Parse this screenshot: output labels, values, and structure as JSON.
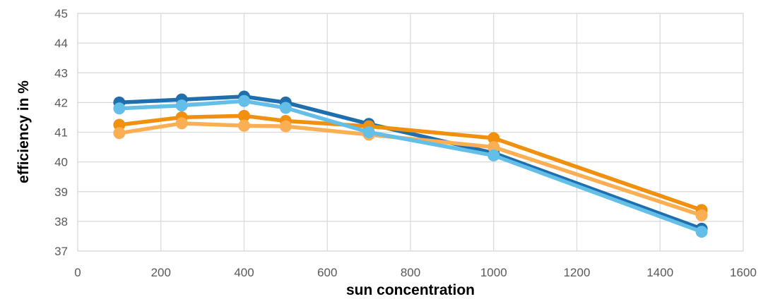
{
  "chart_data": {
    "type": "line",
    "title": "",
    "xlabel": "sun concentration",
    "ylabel": "efficiency in %",
    "xlim": [
      0,
      1600
    ],
    "ylim": [
      37,
      45
    ],
    "xticks": [
      0,
      200,
      400,
      600,
      800,
      1000,
      1200,
      1400,
      1600
    ],
    "yticks": [
      37,
      38,
      39,
      40,
      41,
      42,
      43,
      44,
      45
    ],
    "grid": true,
    "legend": "none",
    "x": [
      100,
      250,
      400,
      500,
      700,
      1000,
      1500
    ],
    "series": [
      {
        "color": "#1F6FAE",
        "values": [
          42.0,
          42.1,
          42.2,
          42.0,
          41.28,
          40.3,
          37.75
        ]
      },
      {
        "color": "#F0900E",
        "values": [
          41.25,
          41.5,
          41.55,
          41.38,
          41.2,
          40.8,
          38.38
        ]
      },
      {
        "color": "#FBAF55",
        "values": [
          40.97,
          41.3,
          41.22,
          41.2,
          40.92,
          40.5,
          38.2
        ]
      },
      {
        "color": "#63BFE8",
        "values": [
          41.8,
          41.9,
          42.05,
          41.82,
          41.0,
          40.22,
          37.65
        ]
      }
    ]
  }
}
